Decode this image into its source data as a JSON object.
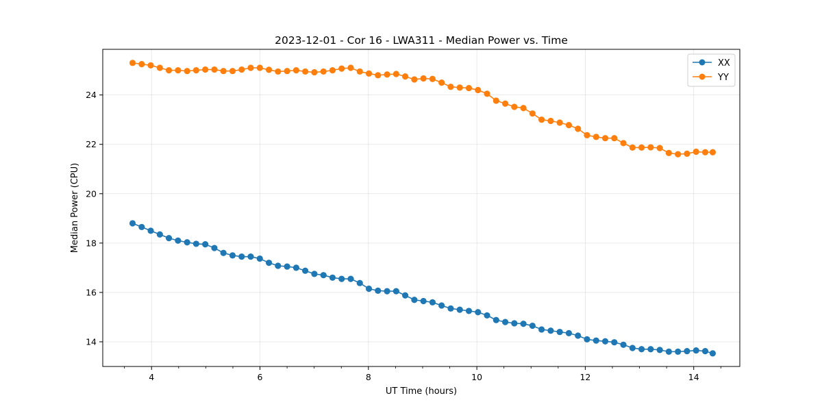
{
  "chart_data": {
    "type": "line",
    "title": "2023-12-01 - Cor 16 - LWA311 - Median Power vs. Time",
    "xlabel": "UT Time (hours)",
    "ylabel": "Median Power (CPU)",
    "xlim": [
      3.1,
      14.85
    ],
    "ylim": [
      13.0,
      25.85
    ],
    "xticks": [
      4,
      6,
      8,
      10,
      12,
      14
    ],
    "xtick_labels": [
      "4",
      "6",
      "8",
      "10",
      "12",
      "14"
    ],
    "yticks": [
      14,
      16,
      18,
      20,
      22,
      24
    ],
    "ytick_labels": [
      "14",
      "16",
      "18",
      "20",
      "22",
      "24"
    ],
    "grid": true,
    "legend_position": "top-right",
    "x": [
      3.65,
      3.818,
      3.985,
      4.153,
      4.32,
      4.488,
      4.656,
      4.823,
      4.991,
      5.159,
      5.326,
      5.494,
      5.662,
      5.829,
      5.997,
      6.165,
      6.332,
      6.5,
      6.668,
      6.835,
      7.003,
      7.171,
      7.338,
      7.506,
      7.674,
      7.841,
      8.009,
      8.176,
      8.344,
      8.512,
      8.679,
      8.847,
      9.015,
      9.182,
      9.35,
      9.518,
      9.685,
      9.853,
      10.021,
      10.188,
      10.356,
      10.524,
      10.691,
      10.859,
      11.026,
      11.194,
      11.362,
      11.529,
      11.697,
      11.865,
      12.032,
      12.2,
      12.368,
      12.535,
      12.703,
      12.871,
      13.038,
      13.206,
      13.374,
      13.541,
      13.709,
      13.876,
      14.044,
      14.212,
      14.35
    ],
    "series": [
      {
        "name": "XX",
        "color": "#1f77b4",
        "values": [
          18.8,
          18.65,
          18.5,
          18.35,
          18.2,
          18.1,
          18.03,
          17.97,
          17.95,
          17.8,
          17.6,
          17.5,
          17.45,
          17.45,
          17.37,
          17.2,
          17.08,
          17.05,
          17.0,
          16.88,
          16.75,
          16.7,
          16.6,
          16.55,
          16.55,
          16.38,
          16.15,
          16.07,
          16.05,
          16.05,
          15.88,
          15.7,
          15.65,
          15.6,
          15.47,
          15.35,
          15.3,
          15.25,
          15.2,
          15.07,
          14.88,
          14.8,
          14.75,
          14.73,
          14.65,
          14.5,
          14.45,
          14.4,
          14.35,
          14.25,
          14.1,
          14.05,
          14.02,
          13.98,
          13.88,
          13.75,
          13.7,
          13.7,
          13.67,
          13.6,
          13.6,
          13.62,
          13.65,
          13.62,
          13.53
        ]
      },
      {
        "name": "YY",
        "color": "#ff7f0e",
        "values": [
          25.3,
          25.25,
          25.2,
          25.1,
          25.0,
          25.0,
          24.97,
          25.0,
          25.03,
          25.03,
          24.97,
          24.97,
          25.03,
          25.1,
          25.1,
          25.02,
          24.95,
          24.97,
          25.0,
          24.95,
          24.92,
          24.95,
          25.0,
          25.07,
          25.1,
          24.95,
          24.87,
          24.8,
          24.83,
          24.85,
          24.75,
          24.63,
          24.67,
          24.65,
          24.5,
          24.33,
          24.3,
          24.28,
          24.2,
          24.05,
          23.77,
          23.65,
          23.52,
          23.47,
          23.25,
          23.0,
          22.95,
          22.88,
          22.78,
          22.63,
          22.37,
          22.3,
          22.25,
          22.25,
          22.05,
          21.87,
          21.87,
          21.88,
          21.85,
          21.65,
          21.6,
          21.62,
          21.7,
          21.68,
          21.68
        ]
      }
    ]
  }
}
